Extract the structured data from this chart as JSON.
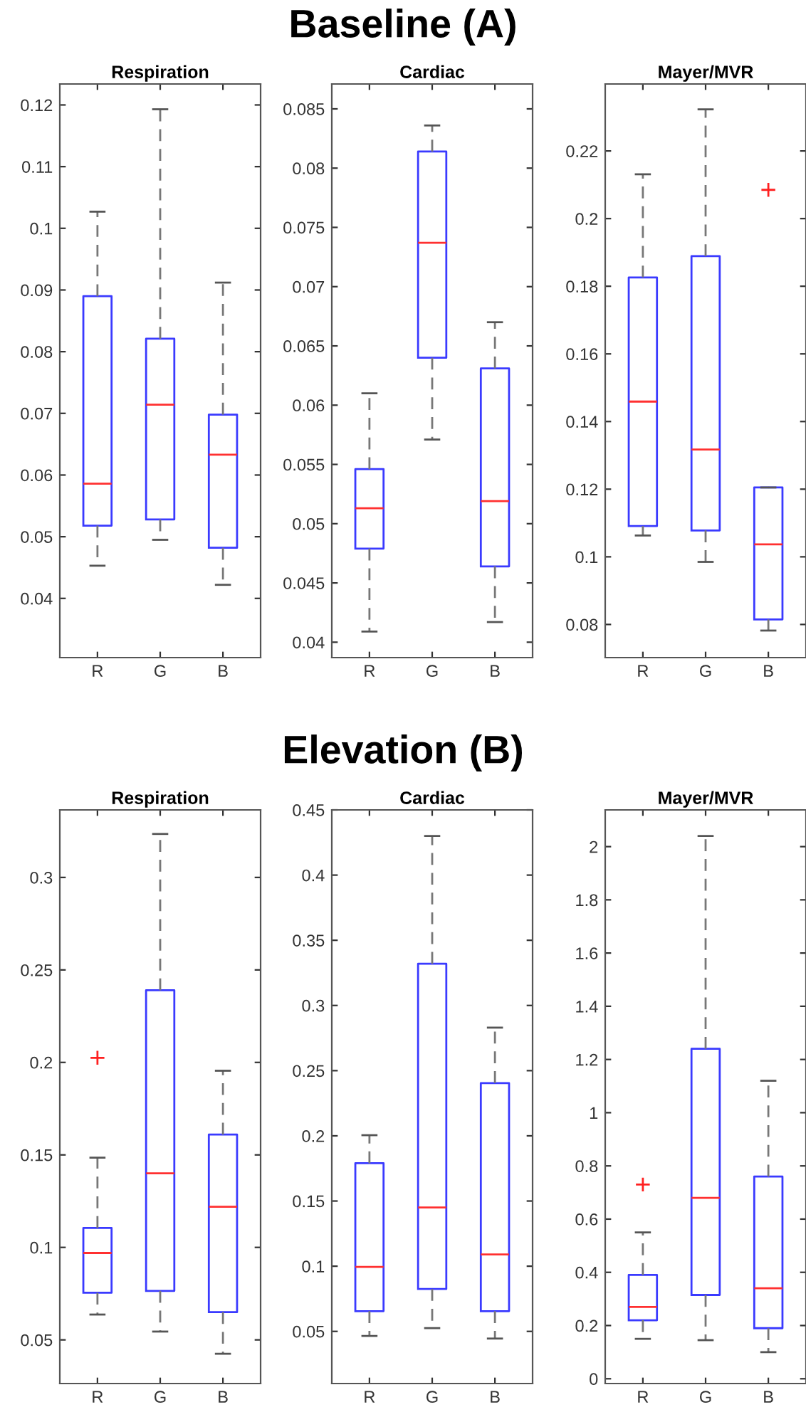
{
  "chart_data": [
    {
      "type": "box",
      "title": "Respiration",
      "annotations": [
        "Baseline (A)"
      ],
      "categories": [
        "R",
        "G",
        "B"
      ],
      "ylim": [
        0.0304,
        0.1234
      ],
      "yticks": [
        0.04,
        0.05,
        0.06,
        0.07,
        0.08,
        0.09,
        0.1,
        0.11,
        0.12
      ],
      "grid": false,
      "series": [
        {
          "color": "#3a3aff",
          "boxes": [
            {
              "low": 0.0453,
              "q1": 0.0518,
              "median": 0.0586,
              "q3": 0.089,
              "high": 0.1027
            },
            {
              "low": 0.0495,
              "q1": 0.0528,
              "median": 0.0714,
              "q3": 0.0821,
              "high": 0.1193
            },
            {
              "low": 0.0422,
              "q1": 0.0482,
              "median": 0.0633,
              "q3": 0.0698,
              "high": 0.0912
            }
          ]
        }
      ]
    },
    {
      "type": "box",
      "title": "Cardiac",
      "categories": [
        "R",
        "G",
        "B"
      ],
      "ylim": [
        0.0387,
        0.0871
      ],
      "yticks": [
        0.04,
        0.045,
        0.05,
        0.055,
        0.06,
        0.065,
        0.07,
        0.075,
        0.08,
        0.085
      ],
      "grid": false,
      "series": [
        {
          "color": "#3a3aff",
          "boxes": [
            {
              "low": 0.0409,
              "q1": 0.0479,
              "median": 0.0513,
              "q3": 0.0546,
              "high": 0.061
            },
            {
              "low": 0.0571,
              "q1": 0.064,
              "median": 0.0737,
              "q3": 0.0814,
              "high": 0.0836
            },
            {
              "low": 0.0417,
              "q1": 0.0464,
              "median": 0.0519,
              "q3": 0.0631,
              "high": 0.067
            }
          ]
        }
      ]
    },
    {
      "type": "box",
      "title": "Mayer/MVR",
      "categories": [
        "R",
        "G",
        "B"
      ],
      "ylim": [
        0.0702,
        0.2398
      ],
      "yticks": [
        0.08,
        0.1,
        0.12,
        0.14,
        0.16,
        0.18,
        0.2,
        0.22
      ],
      "grid": false,
      "series": [
        {
          "color": "#3a3aff",
          "boxes": [
            {
              "low": 0.1063,
              "q1": 0.1091,
              "median": 0.1459,
              "q3": 0.1826,
              "high": 0.2131
            },
            {
              "low": 0.0985,
              "q1": 0.1078,
              "median": 0.1317,
              "q3": 0.1889,
              "high": 0.2323
            },
            {
              "low": 0.0782,
              "q1": 0.0815,
              "median": 0.1037,
              "q3": 0.1205,
              "high": 0.1205,
              "outliers": [
                0.2085
              ]
            }
          ]
        }
      ]
    },
    {
      "type": "box",
      "title": "Respiration",
      "annotations": [
        "Elevation (B)"
      ],
      "categories": [
        "R",
        "G",
        "B"
      ],
      "ylim": [
        0.0264,
        0.3365
      ],
      "yticks": [
        0.05,
        0.1,
        0.15,
        0.2,
        0.25,
        0.3
      ],
      "grid": false,
      "series": [
        {
          "color": "#3a3aff",
          "boxes": [
            {
              "low": 0.0637,
              "q1": 0.0755,
              "median": 0.097,
              "q3": 0.1105,
              "high": 0.1485,
              "outliers": [
                0.2025
              ]
            },
            {
              "low": 0.0545,
              "q1": 0.0765,
              "median": 0.14,
              "q3": 0.239,
              "high": 0.3235
            },
            {
              "low": 0.0425,
              "q1": 0.065,
              "median": 0.122,
              "q3": 0.161,
              "high": 0.1955
            }
          ]
        }
      ]
    },
    {
      "type": "box",
      "title": "Cardiac",
      "categories": [
        "R",
        "G",
        "B"
      ],
      "ylim": [
        0.01,
        0.45
      ],
      "yticks": [
        0.05,
        0.1,
        0.15,
        0.2,
        0.25,
        0.3,
        0.35,
        0.4,
        0.45
      ],
      "grid": false,
      "series": [
        {
          "color": "#3a3aff",
          "boxes": [
            {
              "low": 0.0465,
              "q1": 0.0655,
              "median": 0.0995,
              "q3": 0.179,
              "high": 0.2005
            },
            {
              "low": 0.0525,
              "q1": 0.0825,
              "median": 0.145,
              "q3": 0.332,
              "high": 0.43
            },
            {
              "low": 0.0445,
              "q1": 0.0655,
              "median": 0.109,
              "q3": 0.2405,
              "high": 0.283
            }
          ]
        }
      ]
    },
    {
      "type": "box",
      "title": "Mayer/MVR",
      "categories": [
        "R",
        "G",
        "B"
      ],
      "ylim": [
        -0.018,
        2.138
      ],
      "yticks": [
        0,
        0.2,
        0.4,
        0.6,
        0.8,
        1,
        1.2,
        1.4,
        1.6,
        1.8,
        2
      ],
      "grid": false,
      "series": [
        {
          "color": "#3a3aff",
          "boxes": [
            {
              "low": 0.15,
              "q1": 0.22,
              "median": 0.27,
              "q3": 0.39,
              "high": 0.55,
              "outliers": [
                0.73
              ]
            },
            {
              "low": 0.145,
              "q1": 0.315,
              "median": 0.68,
              "q3": 1.24,
              "high": 2.04
            },
            {
              "low": 0.1,
              "q1": 0.19,
              "median": 0.34,
              "q3": 0.76,
              "high": 1.12
            }
          ]
        }
      ]
    }
  ]
}
